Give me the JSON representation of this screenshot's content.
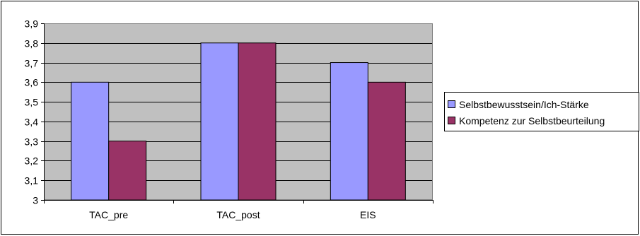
{
  "chart_data": {
    "type": "bar",
    "categories": [
      "TAC_pre",
      "TAC_post",
      "EIS"
    ],
    "series": [
      {
        "name": "Selbstbewusstsein/Ich-Stärke",
        "values": [
          3.6,
          3.8,
          3.7
        ],
        "color": "#9999ff"
      },
      {
        "name": "Kompetenz zur Selbstbeurteilung",
        "values": [
          3.3,
          3.8,
          3.6
        ],
        "color": "#993366"
      }
    ],
    "title": "",
    "xlabel": "",
    "ylabel": "",
    "ylim": [
      3,
      3.9
    ],
    "yticks": [
      "3",
      "3,1",
      "3,2",
      "3,3",
      "3,4",
      "3,5",
      "3,6",
      "3,7",
      "3,8",
      "3,9"
    ],
    "grid": true,
    "plot_background": "#c0c0c0",
    "legend_position": "right"
  }
}
